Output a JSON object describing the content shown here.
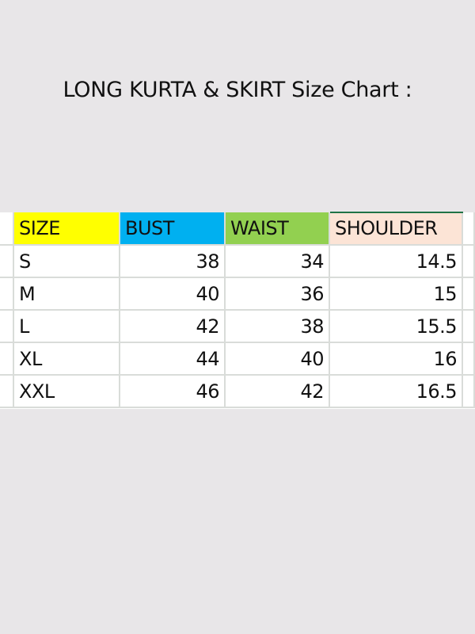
{
  "title": "LONG KURTA & SKIRT Size Chart :",
  "table": {
    "headers": [
      {
        "label": "SIZE",
        "color": "#ffff00"
      },
      {
        "label": "BUST",
        "color": "#00b0f0"
      },
      {
        "label": "WAIST",
        "color": "#92d050"
      },
      {
        "label": "SHOULDER",
        "color": "#fce4d6"
      }
    ],
    "rows": [
      [
        "S",
        "38",
        "34",
        "14.5"
      ],
      [
        "M",
        "40",
        "36",
        "15"
      ],
      [
        "L",
        "42",
        "38",
        "15.5"
      ],
      [
        "XL",
        "44",
        "40",
        "16"
      ],
      [
        "XXL",
        "46",
        "42",
        "16.5"
      ]
    ]
  }
}
